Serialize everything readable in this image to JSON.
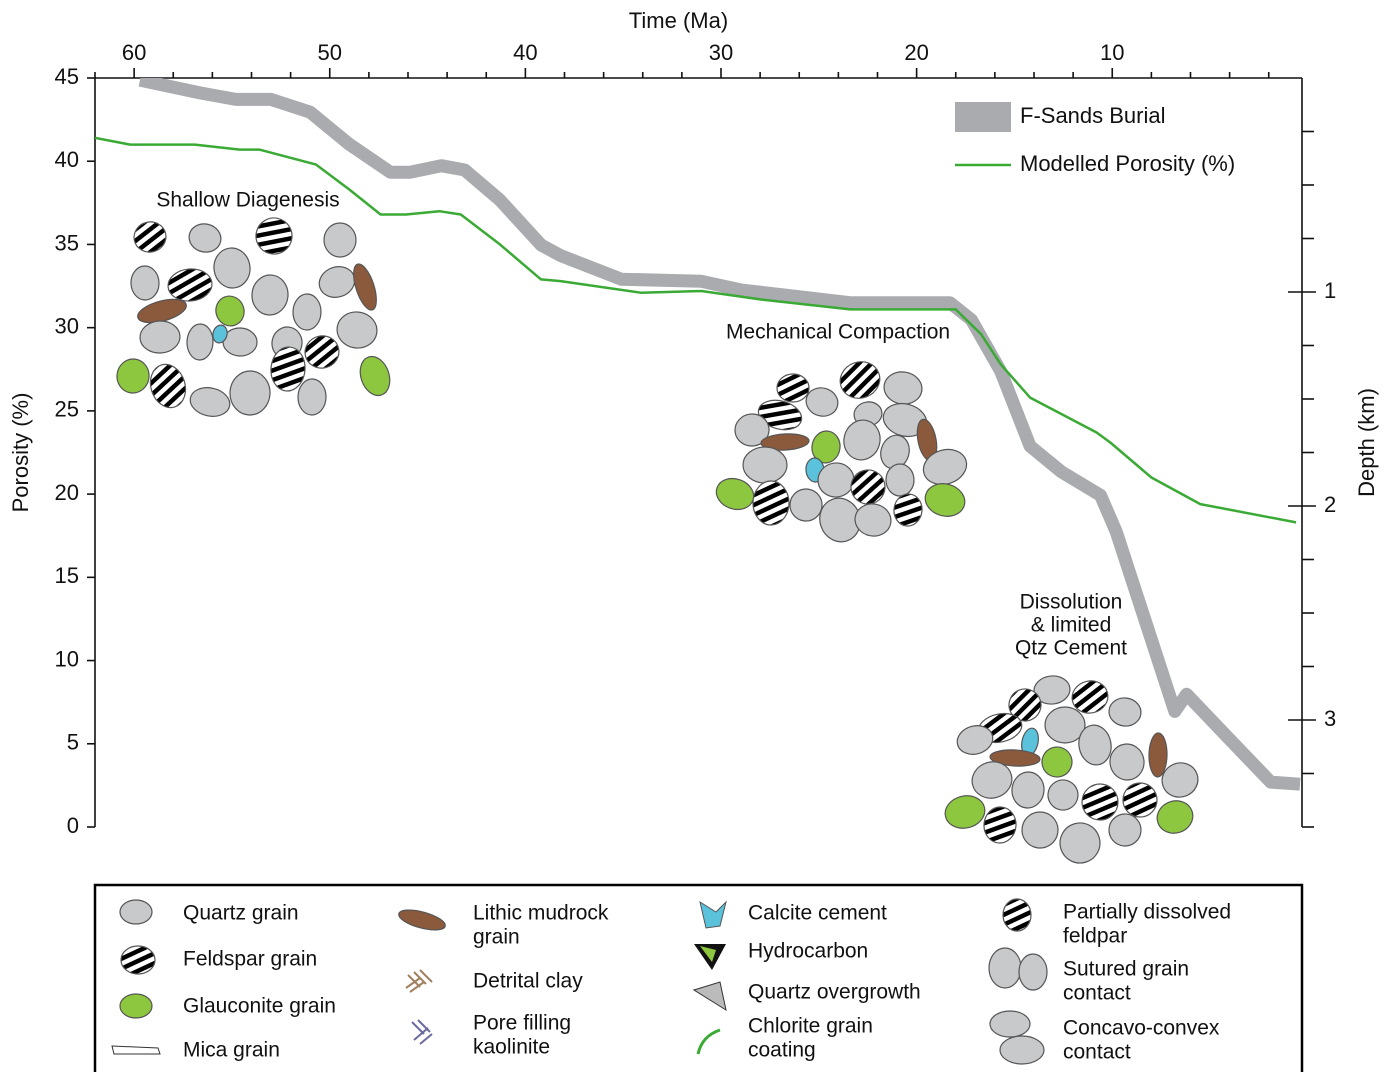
{
  "chart_data": {
    "type": "line",
    "x_label": "Time (Ma)",
    "y_label": "Porosity (%)",
    "y2_label": "Depth (km)",
    "xlim": [
      62,
      0.3
    ],
    "xticks": [
      60,
      50,
      40,
      30,
      20,
      10
    ],
    "x_minor_ticks": [
      62,
      58,
      56,
      54,
      52,
      48,
      46,
      44,
      42,
      38,
      36,
      34,
      32,
      28,
      26,
      24,
      22,
      18,
      16,
      14,
      12,
      8,
      6,
      4,
      2
    ],
    "ylim": [
      0,
      45
    ],
    "yticks": [
      0,
      5,
      10,
      15,
      20,
      25,
      30,
      35,
      40,
      45
    ],
    "y2lim": [
      0,
      3.5
    ],
    "y2_inverted": true,
    "y2ticks": [
      1,
      2,
      3
    ],
    "y2_minor_ticks": [
      0.25,
      0.5,
      0.75,
      1.25,
      1.5,
      1.75,
      2.25,
      2.5,
      2.75,
      3.25,
      3.5
    ],
    "series": [
      {
        "name": "F-Sands Burial",
        "color": "#a9abae",
        "axis": "y2",
        "x": [
          59.7,
          56.6,
          54.8,
          53.0,
          51.0,
          49.0,
          46.9,
          45.9,
          44.3,
          43.1,
          41.3,
          39.2,
          38.2,
          35.1,
          31.0,
          29.0,
          23.4,
          18.3,
          17.2,
          15.7,
          14.2,
          12.6,
          10.6,
          9.8,
          6.8,
          6.2,
          3.9,
          1.9,
          0.4
        ],
        "values": [
          0.01,
          0.07,
          0.1,
          0.1,
          0.16,
          0.31,
          0.44,
          0.44,
          0.41,
          0.43,
          0.57,
          0.78,
          0.83,
          0.94,
          0.95,
          0.99,
          1.05,
          1.05,
          1.13,
          1.37,
          1.72,
          1.84,
          1.95,
          2.12,
          2.96,
          2.88,
          3.1,
          3.29,
          3.3
        ]
      },
      {
        "name": "Modelled Porosity (%)",
        "color": "#3aaa35",
        "x": [
          62.0,
          60.2,
          56.9,
          54.6,
          53.6,
          50.7,
          49.0,
          47.4,
          46.1,
          44.4,
          43.3,
          41.3,
          39.2,
          38.2,
          34.1,
          31.0,
          28.0,
          23.4,
          18.0,
          16.7,
          15.7,
          14.2,
          10.8,
          10.1,
          8.0,
          5.5,
          0.6
        ],
        "values": [
          41.4,
          41.0,
          41.0,
          40.7,
          40.7,
          39.8,
          38.3,
          36.8,
          36.8,
          37.0,
          36.8,
          35.0,
          32.9,
          32.8,
          32.1,
          32.2,
          31.7,
          31.1,
          31.1,
          29.6,
          27.8,
          25.8,
          23.7,
          23.1,
          21.0,
          19.4,
          18.3
        ]
      }
    ],
    "legend_position": "upper right",
    "annotations": [
      {
        "lines": [
          "Shallow Diagenesis"
        ]
      },
      {
        "lines": [
          "Mechanical Compaction"
        ]
      },
      {
        "lines": [
          "Dissolution",
          "& limited",
          "Qtz Cement"
        ]
      }
    ]
  },
  "legend_box": {
    "items": [
      {
        "lines": [
          "Quartz grain"
        ]
      },
      {
        "lines": [
          "Feldspar grain"
        ]
      },
      {
        "lines": [
          "Glauconite grain"
        ]
      },
      {
        "lines": [
          "Mica grain"
        ]
      },
      {
        "lines": [
          "Lithic mudrock",
          "grain"
        ]
      },
      {
        "lines": [
          "Detrital clay"
        ]
      },
      {
        "lines": [
          "Pore filling",
          "kaolinite"
        ]
      },
      {
        "lines": [
          "Calcite cement"
        ]
      },
      {
        "lines": [
          "Hydrocarbon"
        ]
      },
      {
        "lines": [
          "Quartz overgrowth"
        ]
      },
      {
        "lines": [
          "Chlorite grain",
          "coating"
        ]
      },
      {
        "lines": [
          "Partially dissolved",
          "feldpar"
        ]
      },
      {
        "lines": [
          "Sutured grain",
          "contact"
        ]
      },
      {
        "lines": [
          "Concavo-convex",
          "contact"
        ]
      }
    ]
  }
}
